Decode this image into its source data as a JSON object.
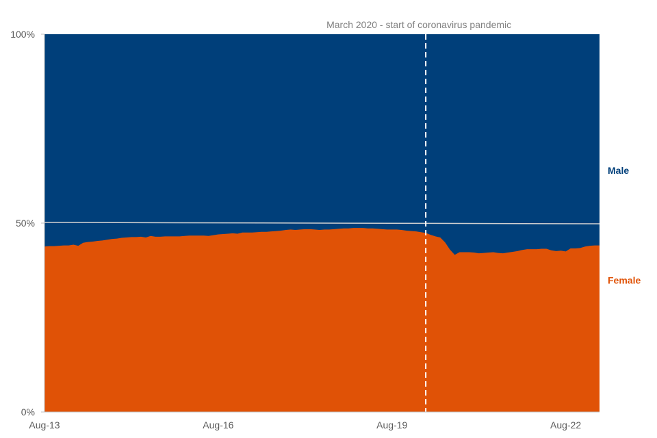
{
  "chart_data": {
    "type": "area",
    "title": "",
    "xlabel": "",
    "ylabel": "",
    "ylim": [
      0,
      100
    ],
    "y_ticks": [
      "0%",
      "50%",
      "100%"
    ],
    "x_ticks": [
      "Aug-13",
      "Aug-16",
      "Aug-19",
      "Aug-22"
    ],
    "x_tick_indices": [
      0,
      36,
      72,
      108
    ],
    "annotation": {
      "text": "March 2020 - start of coronavirus pandemic",
      "x_index": 79
    },
    "reference_line_value": 50,
    "stacked": true,
    "series": [
      {
        "name": "Female",
        "label": "Female",
        "color": "#E05206",
        "values": [
          43.8,
          43.9,
          43.9,
          44.0,
          44.1,
          44.1,
          44.3,
          44.0,
          44.8,
          45.0,
          45.1,
          45.3,
          45.4,
          45.6,
          45.8,
          45.9,
          46.1,
          46.2,
          46.3,
          46.3,
          46.4,
          46.2,
          46.6,
          46.4,
          46.4,
          46.5,
          46.5,
          46.5,
          46.5,
          46.6,
          46.7,
          46.7,
          46.7,
          46.7,
          46.6,
          46.8,
          47.0,
          47.1,
          47.2,
          47.3,
          47.2,
          47.5,
          47.5,
          47.5,
          47.6,
          47.7,
          47.7,
          47.8,
          47.9,
          48.0,
          48.2,
          48.3,
          48.2,
          48.3,
          48.4,
          48.4,
          48.3,
          48.2,
          48.3,
          48.3,
          48.4,
          48.5,
          48.6,
          48.6,
          48.7,
          48.7,
          48.7,
          48.6,
          48.6,
          48.5,
          48.4,
          48.3,
          48.3,
          48.3,
          48.2,
          48.0,
          47.9,
          47.8,
          47.6,
          47.4,
          46.9,
          46.5,
          46.2,
          44.9,
          43.0,
          41.6,
          42.3,
          42.3,
          42.3,
          42.2,
          42.0,
          42.1,
          42.2,
          42.3,
          42.1,
          42.0,
          42.2,
          42.4,
          42.6,
          42.9,
          43.1,
          43.1,
          43.1,
          43.2,
          43.2,
          42.8,
          42.6,
          42.7,
          42.5,
          43.3,
          43.3,
          43.4,
          43.8,
          44.0,
          44.1,
          44.1
        ]
      },
      {
        "name": "Male",
        "label": "Male",
        "color": "#003F7A",
        "values": "remainder to 100%"
      }
    ],
    "grid": false,
    "legend": "direct labels at right"
  }
}
